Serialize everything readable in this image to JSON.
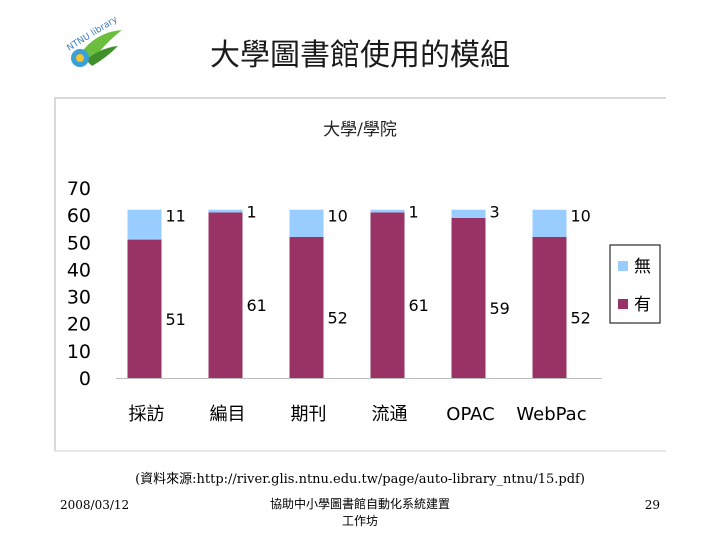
{
  "slide": {
    "title": "大學圖書館使用的模組",
    "source": "(資料來源:http://river.glis.ntnu.edu.tw/page/auto-library_ntnu/15.pdf)",
    "footer_date": "2008/03/12",
    "footer_center_line1": "協助中小學圖書館自動化系統建置",
    "footer_center_line2": "工作坊",
    "page_number": "29",
    "logo_text": "NTNU library"
  },
  "chart_data": {
    "type": "bar",
    "stacked": true,
    "title": "大學/學院",
    "categories": [
      "採訪",
      "編目",
      "期刊",
      "流通",
      "OPAC",
      "WebPac"
    ],
    "series": [
      {
        "name": "有",
        "values": [
          51,
          61,
          52,
          61,
          59,
          52
        ],
        "color": "#993366"
      },
      {
        "name": "無",
        "values": [
          11,
          1,
          10,
          1,
          3,
          10
        ],
        "color": "#99ccff"
      }
    ],
    "ylim": [
      0,
      70
    ],
    "yticks": [
      "0",
      "10",
      "20",
      "30",
      "40",
      "50",
      "60",
      "70"
    ],
    "grid": false,
    "legend_position": "right"
  }
}
